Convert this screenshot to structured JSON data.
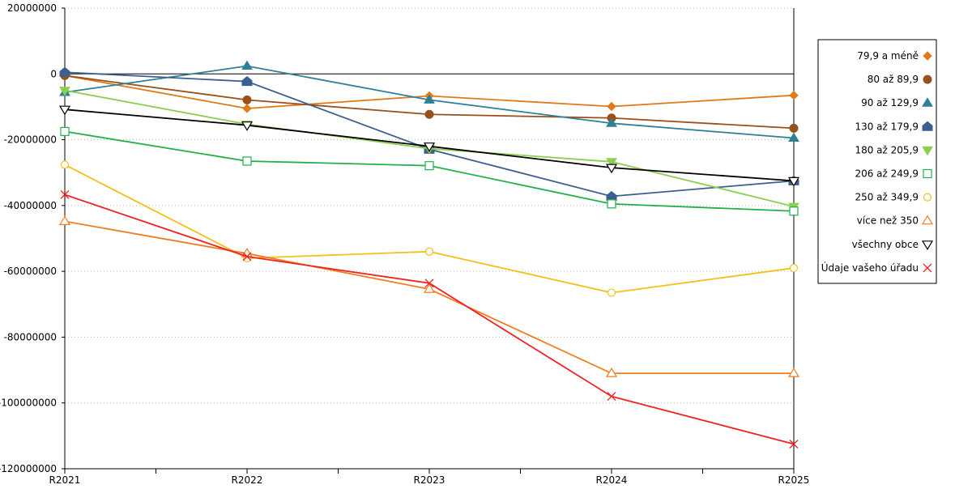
{
  "chart_data": {
    "type": "line",
    "title": "",
    "xlabel": "",
    "ylabel": "",
    "categories": [
      "R2021",
      "R2022",
      "R2023",
      "R2024",
      "R2025"
    ],
    "ylim": [
      -120000000,
      20000000
    ],
    "yticks": [
      20000000,
      0,
      -20000000,
      -40000000,
      -60000000,
      -80000000,
      -100000000,
      -120000000
    ],
    "ytick_labels": [
      "20000000",
      "0",
      "-20000000",
      "-40000000",
      "-60000000",
      "-80000000",
      "-100000000",
      "-120000000"
    ],
    "grid": true,
    "legend_position": "right",
    "series": [
      {
        "name": "79,9 a méně",
        "color": "#e07b1a",
        "marker": "diamond-filled",
        "values": [
          -500000,
          -10500000,
          -6700000,
          -9900000,
          -6500000
        ]
      },
      {
        "name": "80 až 89,9",
        "color": "#99501a",
        "marker": "circle-filled",
        "values": [
          -500000,
          -7900000,
          -12300000,
          -13400000,
          -16500000
        ]
      },
      {
        "name": "90 až 129,9",
        "color": "#2e7f9a",
        "marker": "triangle-filled",
        "values": [
          -5600000,
          2400000,
          -7900000,
          -15000000,
          -19500000
        ]
      },
      {
        "name": "130 až 179,9",
        "color": "#3b5f8f",
        "marker": "pentagon-filled",
        "values": [
          500000,
          -2300000,
          -22900000,
          -37200000,
          -32500000
        ]
      },
      {
        "name": "180 až 205,9",
        "color": "#8ccf4d",
        "marker": "triangle-down-filled",
        "values": [
          -5000000,
          -15300000,
          -22700000,
          -26700000,
          -40300000
        ]
      },
      {
        "name": "206 až 249,9",
        "color": "#22b04a",
        "marker": "square-open",
        "values": [
          -17500000,
          -26500000,
          -27900000,
          -39500000,
          -41700000
        ]
      },
      {
        "name": "250 až 349,9",
        "color": "#f5bf1a",
        "marker": "circle-open",
        "values": [
          -27600000,
          -56000000,
          -54000000,
          -66500000,
          -59000000
        ]
      },
      {
        "name": "více než 350",
        "color": "#f07d1e",
        "marker": "triangle-open",
        "values": [
          -44800000,
          -54600000,
          -65400000,
          -91000000,
          -91000000
        ]
      },
      {
        "name": "všechny obce",
        "color": "#000000",
        "marker": "triangle-down-open",
        "values": [
          -10800000,
          -15600000,
          -22000000,
          -28500000,
          -32500000
        ]
      },
      {
        "name": "Údaje vašeho úřadu",
        "color": "#ee2222",
        "marker": "x",
        "values": [
          -36700000,
          -55500000,
          -63600000,
          -98000000,
          -112500000
        ]
      }
    ]
  }
}
